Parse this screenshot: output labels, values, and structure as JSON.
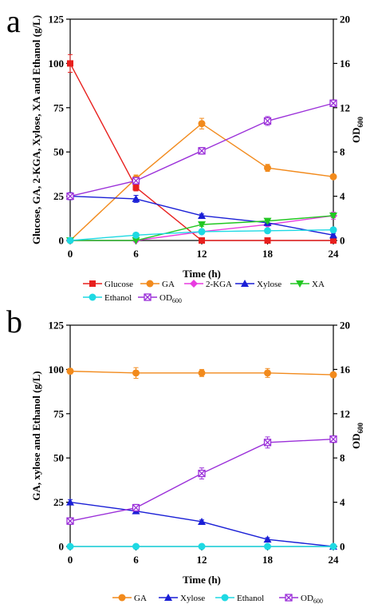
{
  "chart_data": [
    {
      "type": "line",
      "panel_label": "a",
      "x": [
        0,
        6,
        12,
        18,
        24
      ],
      "xlabel": "Time (h)",
      "ylabel_left": "Glucose, GA, 2-KGA, Xylose, XA and Ethanol (g/L)",
      "ylabel_right": "OD",
      "ylabel_right_sub": "600",
      "xlim": [
        0,
        24
      ],
      "ylim_left": [
        0,
        125
      ],
      "ylim_right": [
        0,
        20
      ],
      "x_ticks": [
        "0",
        "6",
        "12",
        "18",
        "24"
      ],
      "y_ticks_left": [
        "0",
        "25",
        "50",
        "75",
        "100",
        "125"
      ],
      "y_ticks_right": [
        "0",
        "4",
        "8",
        "12",
        "16",
        "20"
      ],
      "legend_position": "bottom",
      "series": [
        {
          "name": "Glucose",
          "axis": "left",
          "color": "#e8201e",
          "marker": "square",
          "values": [
            100,
            30,
            0,
            0,
            0
          ],
          "err": [
            5,
            2,
            0,
            0,
            0
          ]
        },
        {
          "name": "GA",
          "axis": "left",
          "color": "#f28a1c",
          "marker": "circle",
          "values": [
            0,
            35,
            66,
            41,
            36
          ],
          "err": [
            0,
            2,
            3,
            2,
            1
          ]
        },
        {
          "name": "2-KGA",
          "axis": "left",
          "color": "#e83ce0",
          "marker": "diamond",
          "values": [
            0,
            0,
            5,
            9,
            14
          ],
          "err": [
            0,
            0,
            1,
            1,
            2
          ]
        },
        {
          "name": "Xylose",
          "axis": "left",
          "color": "#1a1fd6",
          "marker": "triangle-up",
          "values": [
            25,
            23.5,
            14,
            10,
            3
          ],
          "err": [
            2,
            2,
            1,
            1,
            1
          ]
        },
        {
          "name": "XA",
          "axis": "left",
          "color": "#22c722",
          "marker": "triangle-down",
          "values": [
            0,
            0,
            9,
            11,
            14
          ],
          "err": [
            0,
            0,
            1,
            1,
            1
          ]
        },
        {
          "name": "Ethanol",
          "axis": "left",
          "color": "#1ed9e3",
          "marker": "circle",
          "values": [
            0,
            3,
            5,
            5.5,
            6
          ],
          "err": [
            0,
            0.5,
            0.5,
            0.5,
            0.5
          ]
        },
        {
          "name": "OD",
          "name_sub": "600",
          "axis": "right",
          "color": "#9b30d9",
          "marker": "x-square",
          "values": [
            4,
            5.4,
            8.1,
            10.8,
            12.4
          ],
          "err": [
            0.3,
            0.3,
            0.3,
            0.4,
            0.3
          ]
        }
      ]
    },
    {
      "type": "line",
      "panel_label": "b",
      "x": [
        0,
        6,
        12,
        18,
        24
      ],
      "xlabel": "Time (h)",
      "ylabel_left": "GA, xylose and Ethanol (g/L)",
      "ylabel_right": "OD",
      "ylabel_right_sub": "600",
      "xlim": [
        0,
        24
      ],
      "ylim_left": [
        0,
        125
      ],
      "ylim_right": [
        0,
        20
      ],
      "x_ticks": [
        "0",
        "6",
        "12",
        "18",
        "24"
      ],
      "y_ticks_left": [
        "0",
        "25",
        "50",
        "75",
        "100",
        "125"
      ],
      "y_ticks_right": [
        "0",
        "4",
        "8",
        "12",
        "16",
        "20"
      ],
      "legend_position": "bottom",
      "series": [
        {
          "name": "GA",
          "axis": "left",
          "color": "#f28a1c",
          "marker": "circle",
          "values": [
            99,
            98,
            98,
            98,
            97
          ],
          "err": [
            1.5,
            3,
            2,
            2.5,
            1
          ]
        },
        {
          "name": "Xylose",
          "axis": "left",
          "color": "#1a1fd6",
          "marker": "triangle-up",
          "values": [
            25,
            20,
            14,
            4,
            0
          ],
          "err": [
            1.5,
            1.5,
            1,
            1,
            0
          ]
        },
        {
          "name": "Ethanol",
          "axis": "left",
          "color": "#1ed9e3",
          "marker": "circle",
          "values": [
            0,
            0,
            0,
            0,
            0
          ],
          "err": [
            0,
            0,
            0,
            0,
            0
          ]
        },
        {
          "name": "OD",
          "name_sub": "600",
          "axis": "right",
          "color": "#9b30d9",
          "marker": "x-square",
          "values": [
            2.3,
            3.5,
            6.6,
            9.4,
            9.7
          ],
          "err": [
            0.3,
            0.3,
            0.5,
            0.5,
            0.3
          ]
        }
      ]
    }
  ]
}
